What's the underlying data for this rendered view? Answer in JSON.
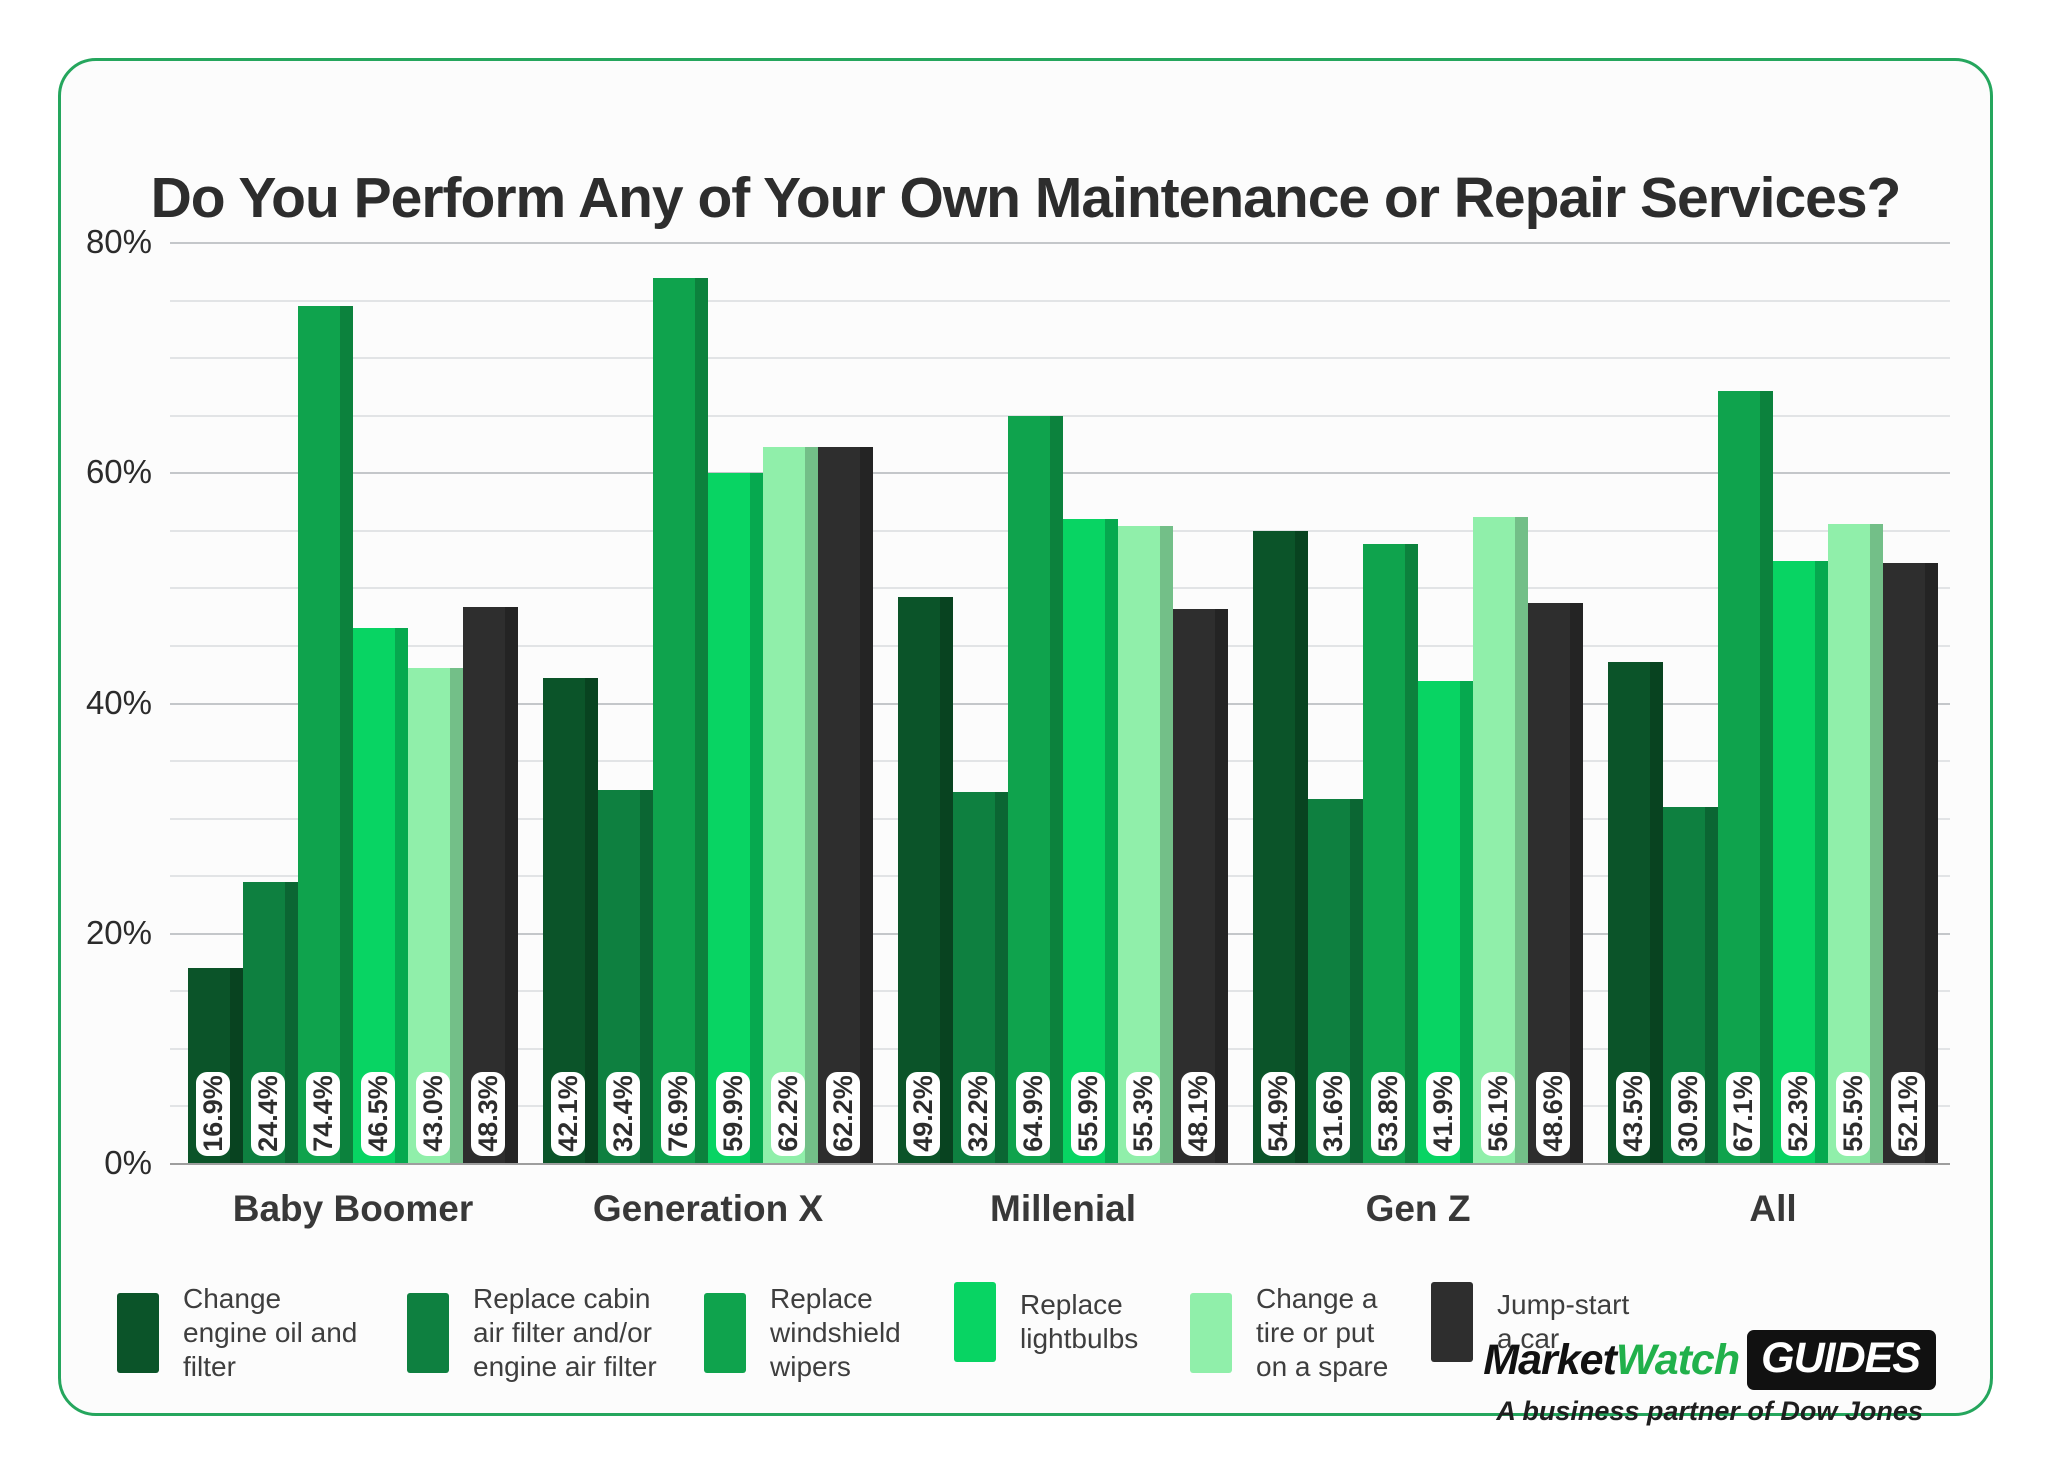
{
  "chart_data": {
    "type": "bar",
    "title": "Do You Perform Any of Your Own Maintenance or Repair Services?",
    "categories": [
      "Baby Boomer",
      "Generation X",
      "Millenial",
      "Gen Z",
      "All"
    ],
    "series": [
      {
        "name": "Change engine oil and filter",
        "color": "#0b5429",
        "values": [
          16.9,
          42.1,
          49.2,
          54.9,
          43.5
        ],
        "labels": [
          "16.9%",
          "42.1%",
          "49.2%",
          "54.9%",
          "43.5%"
        ]
      },
      {
        "name": "Replace cabin air filter and/or engine air filter",
        "color": "#0e8040",
        "values": [
          24.4,
          32.4,
          32.2,
          31.6,
          30.9
        ],
        "labels": [
          "24.4%",
          "32.4%",
          "32.2%",
          "31.6%",
          "30.9%"
        ]
      },
      {
        "name": "Replace windshield wipers",
        "color": "#0fa34d",
        "values": [
          74.4,
          76.9,
          64.9,
          53.8,
          67.1
        ],
        "labels": [
          "74.4%",
          "76.9%",
          "64.9%",
          "53.8%",
          "67.1%"
        ]
      },
      {
        "name": "Replace lightbulbs",
        "color": "#08d463",
        "values": [
          46.5,
          59.9,
          55.9,
          41.9,
          52.3
        ],
        "labels": [
          "46.5%",
          "59.9%",
          "55.9%",
          "41.9%",
          "52.3%"
        ]
      },
      {
        "name": "Change a tire or put on a spare",
        "color": "#90efaa",
        "values": [
          43.0,
          62.2,
          55.3,
          56.1,
          55.5
        ],
        "labels": [
          "43.0%",
          "62.2%",
          "55.3%",
          "56.1%",
          "55.5%"
        ]
      },
      {
        "name": "Jump-start a car",
        "color": "#2e2e2e",
        "values": [
          48.3,
          62.2,
          48.1,
          48.6,
          52.1
        ],
        "labels": [
          "48.3%",
          "62.2%",
          "48.1%",
          "48.6%",
          "52.1%"
        ]
      }
    ],
    "ylim": [
      0,
      80
    ],
    "ytick_labels": [
      "0%",
      "20%",
      "40%",
      "60%",
      "80%"
    ],
    "ytick_values": [
      0,
      20,
      40,
      60,
      80
    ],
    "grid_step": 5,
    "grid": true,
    "legend_position": "bottom"
  },
  "legend_text_widths": [
    185,
    200,
    150,
    140,
    145,
    145
  ],
  "footer": {
    "brand_market": "Market",
    "brand_watch": "Watch",
    "brand_guides": "GUIDES",
    "tagline": "A business partner of Dow Jones"
  },
  "theme": {
    "card_border": "#25a65d",
    "brand_green": "#21b14b",
    "grid_minor": "#e2e4e6",
    "grid_major": "#c4c7ca",
    "axis_line": "#9e9e9e"
  }
}
